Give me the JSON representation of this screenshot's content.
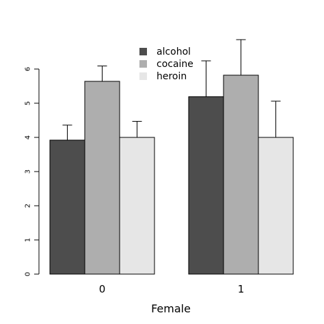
{
  "chart_data": {
    "type": "bar",
    "categories": [
      "0",
      "1"
    ],
    "xlabel": "Female",
    "ylabel": "",
    "title": "",
    "ylim": [
      0,
      6
    ],
    "yticks": [
      0,
      1,
      2,
      3,
      4,
      5,
      6
    ],
    "grid": false,
    "legend_position": "top-center",
    "series": [
      {
        "name": "alcohol",
        "color": "#4d4d4d",
        "values": [
          3.92,
          5.19
        ],
        "err_upper": [
          4.36,
          6.24
        ]
      },
      {
        "name": "cocaine",
        "color": "#aeaeae",
        "values": [
          5.64,
          5.82
        ],
        "err_upper": [
          6.09,
          6.86
        ]
      },
      {
        "name": "heroin",
        "color": "#e6e6e6",
        "values": [
          4.0,
          4.0
        ],
        "err_upper": [
          4.47,
          5.06
        ]
      }
    ]
  }
}
